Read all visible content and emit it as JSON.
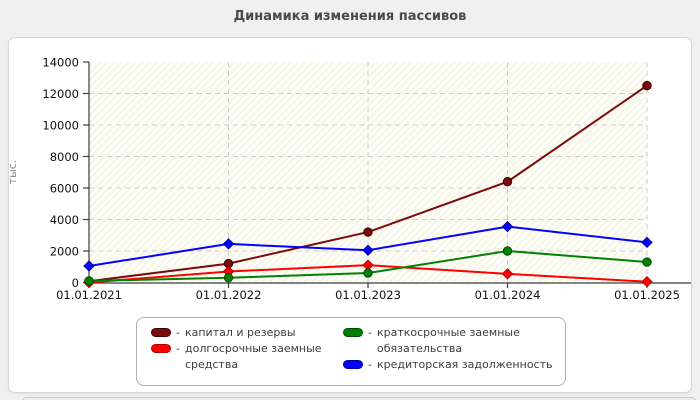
{
  "page": {
    "background": "#f0f0f0",
    "panel_border": "#d8d8d8",
    "panel_bg": "#ffffff"
  },
  "chart_data": {
    "type": "line",
    "title": "Динамика изменения пассивов",
    "title_color": "#4a4a4a",
    "ylabel": "тыс.",
    "ylabel_color": "#8c8c8c",
    "x_labels": [
      "01.01.2021",
      "01.01.2022",
      "01.01.2023",
      "01.01.2024",
      "01.01.2025"
    ],
    "y_ticks": [
      0,
      2000,
      4000,
      6000,
      8000,
      10000,
      12000,
      14000
    ],
    "ylim": [
      0,
      14000
    ],
    "grid": true,
    "grid_color": "#cdcdcd",
    "axis_color": "#3d3d3d",
    "tick_label_color": "#111111",
    "plot_bg": "#f7f7e8",
    "plot_hatch": "#ffffff",
    "legend_position": "bottom",
    "legend_separator": "-",
    "legend_columns": [
      [
        0,
        1
      ],
      [
        2,
        3
      ]
    ],
    "series": [
      {
        "name": "капитал и резервы",
        "color": "#7a0c0c",
        "border": "#3a0404",
        "marker": "circle",
        "values": [
          80,
          1200,
          3200,
          6400,
          12500
        ]
      },
      {
        "name": "долгосрочные заемные средства",
        "color": "#fe0000",
        "border": "#b40000",
        "marker": "diamond",
        "values": [
          0,
          700,
          1100,
          550,
          50
        ]
      },
      {
        "name": "краткосрочные заемные обязательства",
        "color": "#028002",
        "border": "#014d01",
        "marker": "circle",
        "values": [
          100,
          300,
          600,
          2000,
          1300
        ]
      },
      {
        "name": "кредиторская задолженность",
        "color": "#0202fe",
        "border": "#0101a8",
        "marker": "diamond",
        "values": [
          1050,
          2450,
          2050,
          3550,
          2550
        ]
      }
    ]
  }
}
